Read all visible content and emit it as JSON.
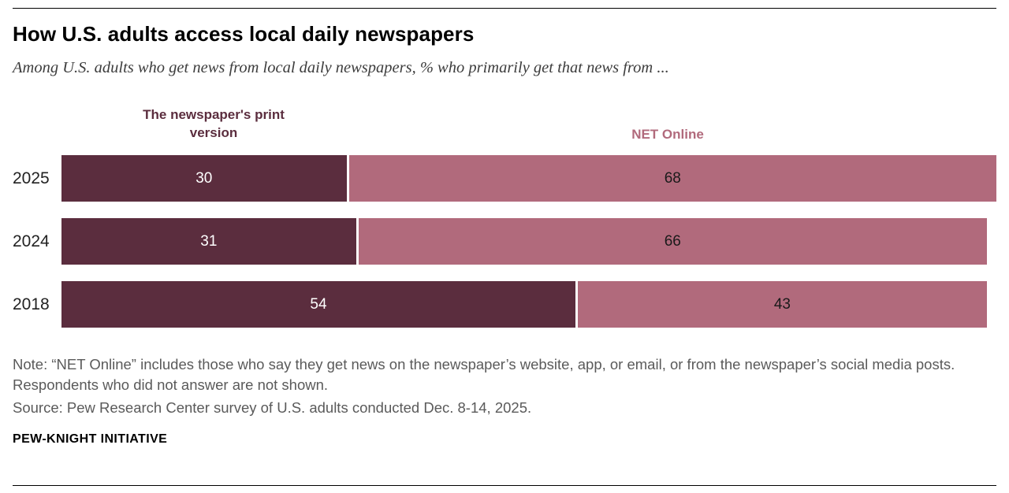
{
  "header": {
    "title": "How U.S. adults access local daily newspapers",
    "subtitle": "Among U.S. adults who get news from local daily newspapers, % who primarily get that news from ..."
  },
  "chart_data": {
    "type": "bar",
    "orientation": "horizontal",
    "stacked": true,
    "categories": [
      "2025",
      "2024",
      "2018"
    ],
    "series": [
      {
        "name": "The newspaper's print version",
        "color": "#5b2d3e",
        "values": [
          30,
          31,
          54
        ]
      },
      {
        "name": "NET Online",
        "color": "#b16a7c",
        "values": [
          68,
          66,
          43
        ]
      }
    ],
    "xlim": [
      0,
      98
    ],
    "legend_position": "top",
    "grid": false,
    "value_labels": "inside"
  },
  "footer": {
    "note": "Note: “NET Online” includes those who say they get news on the newspaper’s website, app, or email, or from the newspaper’s social media posts. Respondents who did not answer are not shown.",
    "source": "Source: Pew Research Center survey of U.S. adults conducted Dec. 8-14, 2025.",
    "brand": "PEW-KNIGHT INITIATIVE"
  }
}
